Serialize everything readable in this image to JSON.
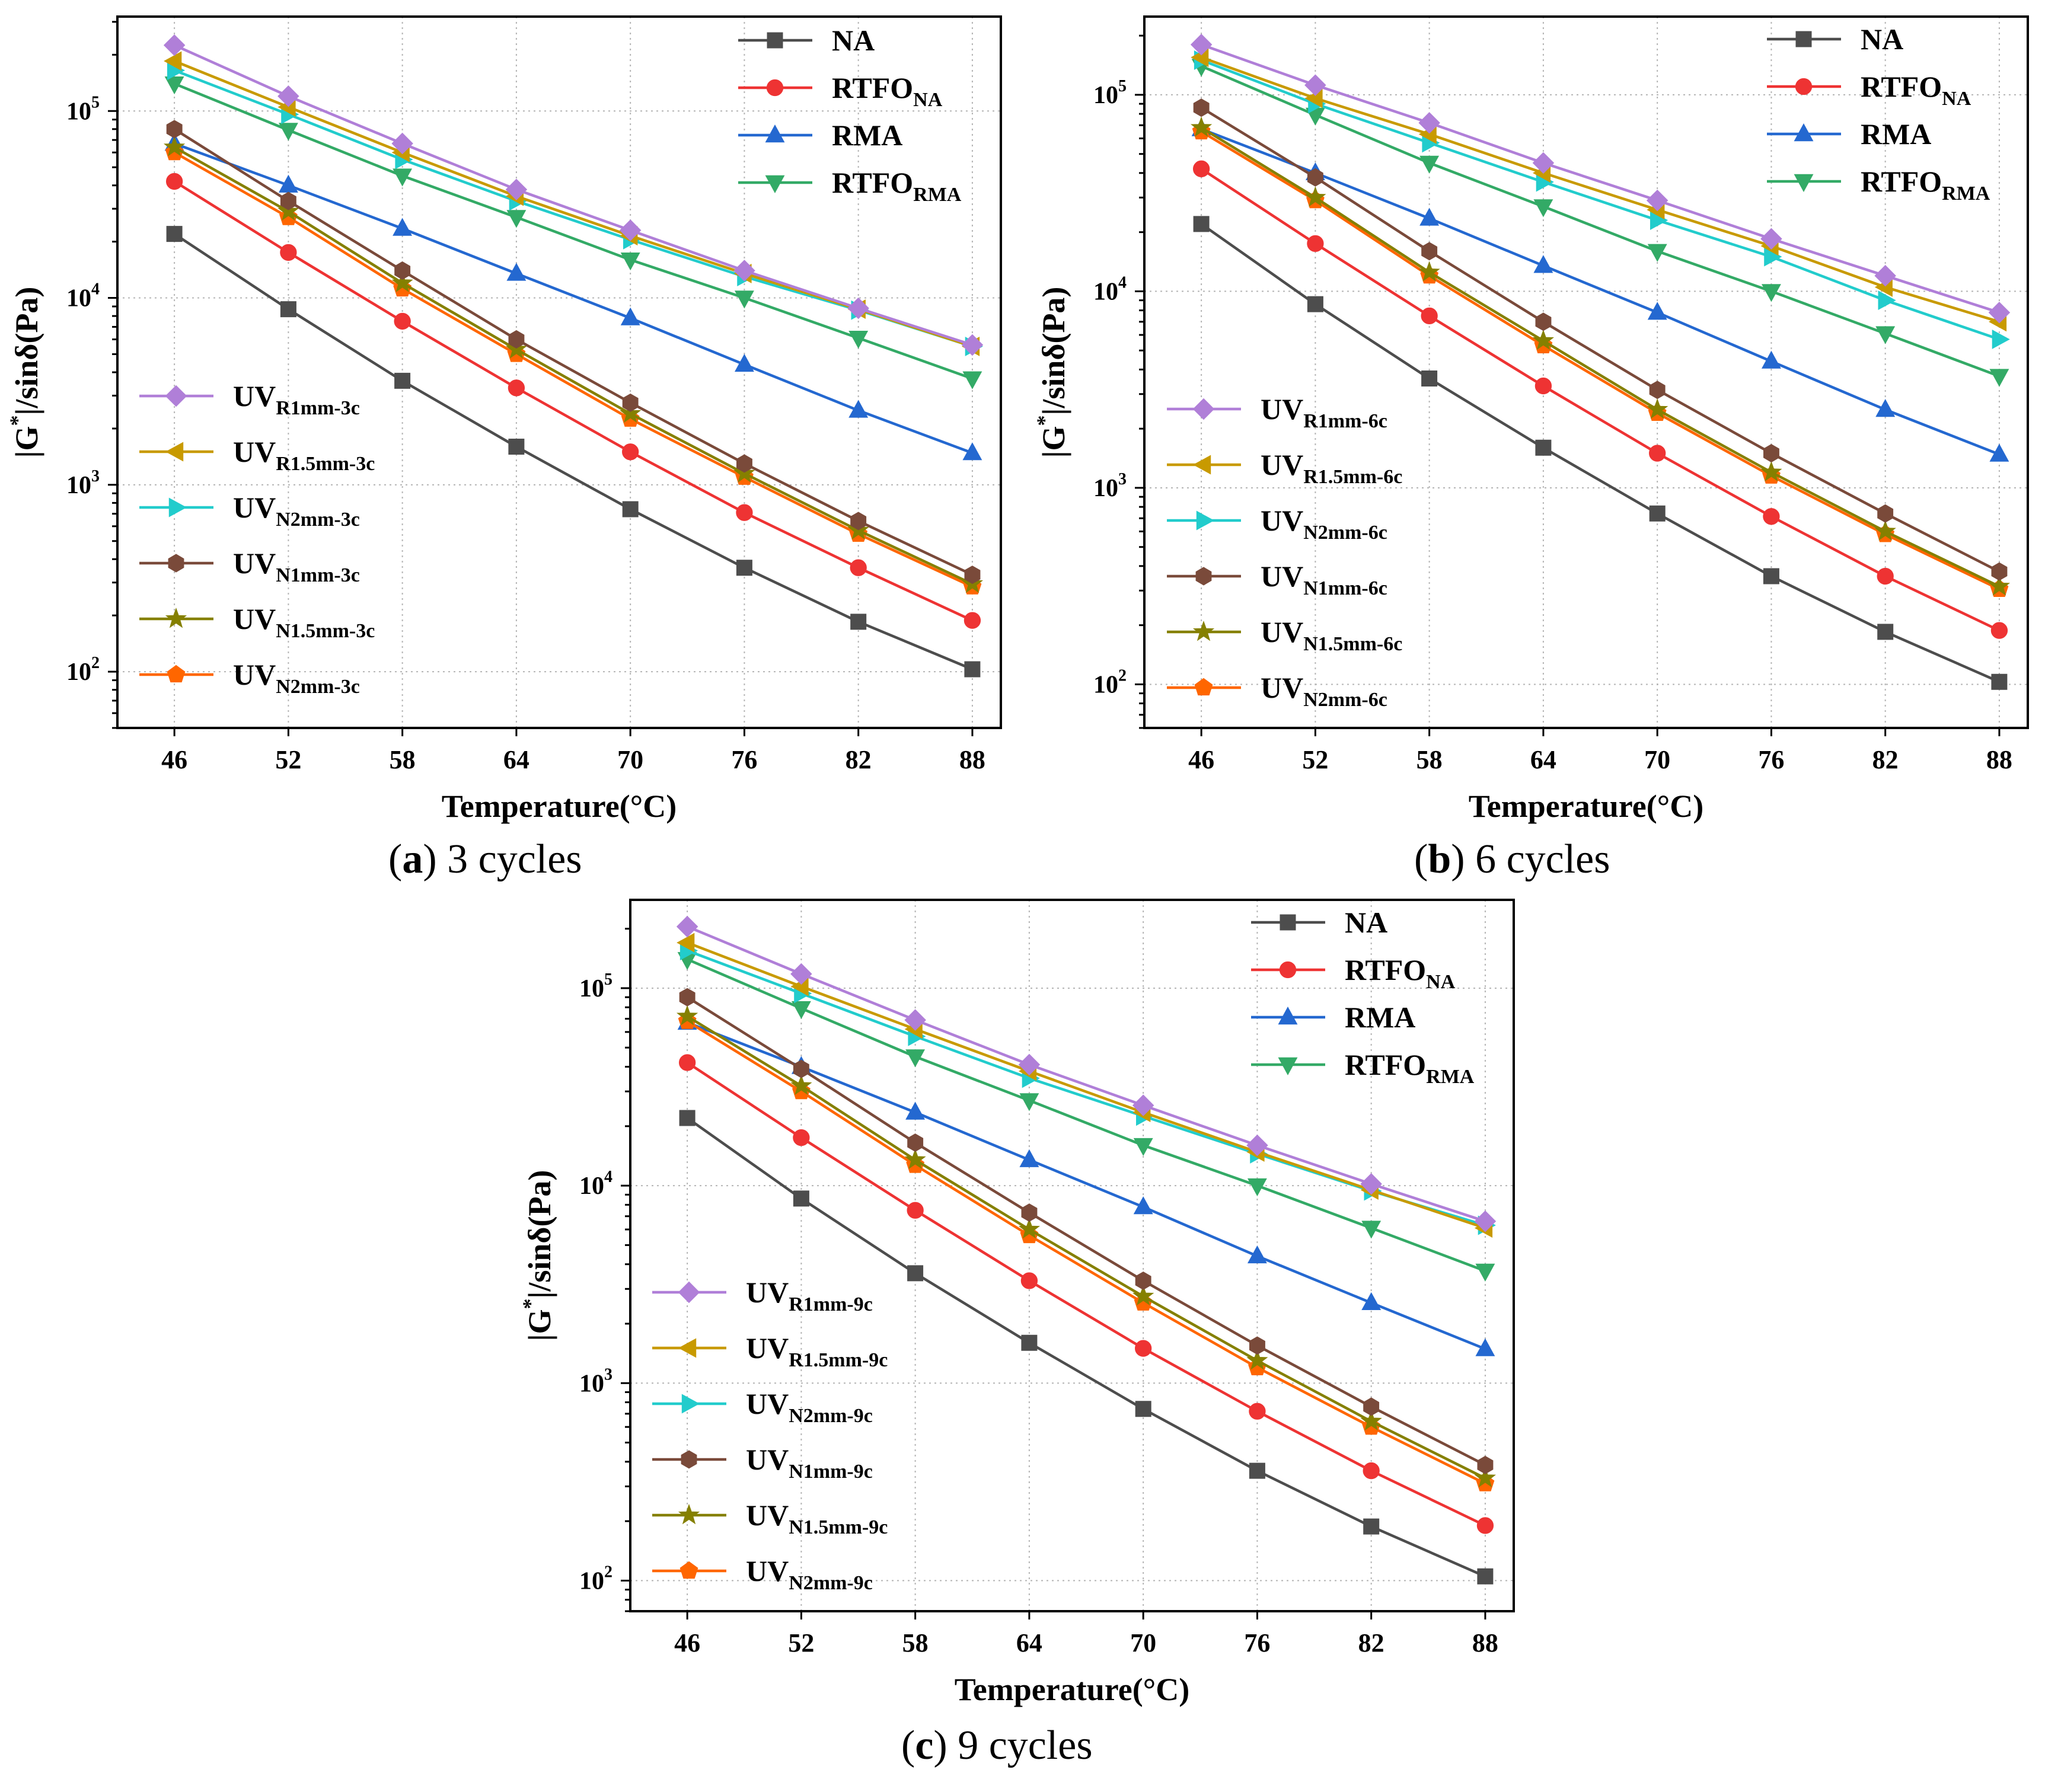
{
  "figure": {
    "captions": [
      {
        "letter": "a",
        "text": " 3 cycles"
      },
      {
        "letter": "b",
        "text": " 6 cycles"
      },
      {
        "letter": "c",
        "text": " 9 cycles"
      }
    ]
  },
  "series_styles": {
    "NA": {
      "color": "#4d4d4d",
      "marker": "square"
    },
    "RTFO_NA": {
      "color": "#ee3333",
      "marker": "circle"
    },
    "RMA": {
      "color": "#2468d0",
      "marker": "triangle-up"
    },
    "RTFO_RMA": {
      "color": "#33aa66",
      "marker": "triangle-down"
    },
    "UV_R1mm": {
      "color": "#b07fd8",
      "marker": "diamond"
    },
    "UV_R1.5mm": {
      "color": "#c89a00",
      "marker": "triangle-left"
    },
    "UV_N2mm_teal": {
      "color": "#22cccc",
      "marker": "triangle-right"
    },
    "UV_N1mm": {
      "color": "#7a4a3a",
      "marker": "hexagon"
    },
    "UV_N1.5mm": {
      "color": "#858000",
      "marker": "star"
    },
    "UV_N2mm_orange": {
      "color": "#ff6600",
      "marker": "pentagon"
    }
  },
  "chart_data": [
    {
      "type": "line",
      "panel": "a",
      "xlabel": "Temperature(°C)",
      "ylabel_parts": {
        "pre": "|G",
        "sup": "*",
        "post": "|/sinδ(Pa)"
      },
      "yscale": "log",
      "ylim": [
        50,
        320000
      ],
      "xlim": [
        43,
        89.5
      ],
      "x": [
        46,
        52,
        58,
        64,
        70,
        76,
        82,
        88
      ],
      "x_tick_labels": [
        "46",
        "52",
        "58",
        "64",
        "70",
        "76",
        "82",
        "88"
      ],
      "y_ticks": [
        {
          "base": "10",
          "exp": "2"
        },
        {
          "base": "10",
          "exp": "3"
        },
        {
          "base": "10",
          "exp": "4"
        },
        {
          "base": "10",
          "exp": "5"
        }
      ],
      "grid": true,
      "series": [
        {
          "style": "NA",
          "label": "NA",
          "sub": "",
          "values": [
            22000,
            8700,
            3600,
            1600,
            740,
            360,
            185,
            103
          ]
        },
        {
          "style": "RTFO_NA",
          "label": "RTFO",
          "sub": "NA",
          "values": [
            42000,
            17500,
            7500,
            3300,
            1500,
            710,
            360,
            188
          ]
        },
        {
          "style": "RMA",
          "label": "RMA",
          "sub": "",
          "values": [
            67000,
            40000,
            23500,
            13500,
            7800,
            4400,
            2500,
            1480
          ]
        },
        {
          "style": "RTFO_RMA",
          "label": "RTFO",
          "sub": "RMA",
          "values": [
            140000,
            79000,
            45000,
            27000,
            16000,
            10000,
            6100,
            3700
          ]
        },
        {
          "style": "UV_R1mm",
          "label": "UV",
          "sub": "R1mm-3c",
          "values": [
            225000,
            120000,
            67000,
            38000,
            23000,
            14000,
            8800,
            5600
          ]
        },
        {
          "style": "UV_R1.5mm",
          "label": "UV",
          "sub": "R1.5mm-3c",
          "values": [
            185000,
            105000,
            60000,
            35000,
            21500,
            13500,
            8700,
            5500
          ]
        },
        {
          "style": "UV_N2mm_teal",
          "label": "UV",
          "sub": "N2mm-3c",
          "values": [
            165000,
            96000,
            55000,
            33000,
            20500,
            13000,
            8600,
            5500
          ]
        },
        {
          "style": "UV_N1mm",
          "label": "UV",
          "sub": "N1mm-3c",
          "values": [
            80000,
            33000,
            14000,
            6000,
            2750,
            1300,
            640,
            330
          ]
        },
        {
          "style": "UV_N1.5mm",
          "label": "UV",
          "sub": "N1.5mm-3c",
          "values": [
            64000,
            29000,
            12000,
            5300,
            2400,
            1150,
            570,
            295
          ]
        },
        {
          "style": "UV_N2mm_orange",
          "label": "UV",
          "sub": "N2mm-3c",
          "values": [
            60000,
            27000,
            11200,
            5000,
            2250,
            1100,
            545,
            285
          ]
        }
      ]
    },
    {
      "type": "line",
      "panel": "b",
      "xlabel": "Temperature(°C)",
      "ylabel_parts": {
        "pre": "|G",
        "sup": "*",
        "post": "|/sinδ(Pa)"
      },
      "yscale": "log",
      "ylim": [
        60,
        250000
      ],
      "xlim": [
        43,
        89.5
      ],
      "x": [
        46,
        52,
        58,
        64,
        70,
        76,
        82,
        88
      ],
      "x_tick_labels": [
        "46",
        "52",
        "58",
        "64",
        "70",
        "76",
        "82",
        "88"
      ],
      "y_ticks": [
        {
          "base": "10",
          "exp": "2"
        },
        {
          "base": "10",
          "exp": "3"
        },
        {
          "base": "10",
          "exp": "4"
        },
        {
          "base": "10",
          "exp": "5"
        }
      ],
      "grid": true,
      "series": [
        {
          "style": "NA",
          "label": "NA",
          "sub": "",
          "values": [
            22000,
            8600,
            3600,
            1600,
            740,
            355,
            185,
            103
          ]
        },
        {
          "style": "RTFO_NA",
          "label": "RTFO",
          "sub": "NA",
          "values": [
            42000,
            17500,
            7500,
            3300,
            1500,
            715,
            355,
            188
          ]
        },
        {
          "style": "RMA",
          "label": "RMA",
          "sub": "",
          "values": [
            67000,
            40000,
            23500,
            13500,
            7800,
            4400,
            2500,
            1480
          ]
        },
        {
          "style": "RTFO_RMA",
          "label": "RTFO",
          "sub": "RMA",
          "values": [
            140000,
            79000,
            45000,
            27000,
            16000,
            10000,
            6100,
            3700
          ]
        },
        {
          "style": "UV_R1mm",
          "label": "UV",
          "sub": "R1mm-6c",
          "values": [
            180000,
            112000,
            72000,
            45000,
            29000,
            18500,
            12000,
            7800
          ]
        },
        {
          "style": "UV_R1.5mm",
          "label": "UV",
          "sub": "R1.5mm-6c",
          "values": [
            155000,
            96000,
            63000,
            40000,
            26000,
            17000,
            10500,
            7000
          ]
        },
        {
          "style": "UV_N2mm_teal",
          "label": "UV",
          "sub": "N2mm-6c",
          "values": [
            150000,
            90000,
            57000,
            36000,
            23000,
            15000,
            9000,
            5700
          ]
        },
        {
          "style": "UV_N1mm",
          "label": "UV",
          "sub": "N1mm-6c",
          "values": [
            86000,
            38000,
            16000,
            7000,
            3150,
            1500,
            740,
            375
          ]
        },
        {
          "style": "UV_N1.5mm",
          "label": "UV",
          "sub": "N1.5mm-6c",
          "values": [
            68000,
            30000,
            12500,
            5600,
            2500,
            1200,
            600,
            315
          ]
        },
        {
          "style": "UV_N2mm_orange",
          "label": "UV",
          "sub": "N2mm-6c",
          "values": [
            65000,
            29000,
            12000,
            5300,
            2400,
            1150,
            580,
            305
          ]
        }
      ]
    },
    {
      "type": "line",
      "panel": "c",
      "xlabel": "Temperature(°C)",
      "ylabel_parts": {
        "pre": "|G",
        "sup": "*",
        "post": "|/sinδ(Pa)"
      },
      "yscale": "log",
      "ylim": [
        70,
        280000
      ],
      "xlim": [
        43,
        89.5
      ],
      "x": [
        46,
        52,
        58,
        64,
        70,
        76,
        82,
        88
      ],
      "x_tick_labels": [
        "46",
        "52",
        "58",
        "64",
        "70",
        "76",
        "82",
        "88"
      ],
      "y_ticks": [
        {
          "base": "10",
          "exp": "2"
        },
        {
          "base": "10",
          "exp": "3"
        },
        {
          "base": "10",
          "exp": "4"
        },
        {
          "base": "10",
          "exp": "5"
        }
      ],
      "grid": true,
      "series": [
        {
          "style": "NA",
          "label": "NA",
          "sub": "",
          "values": [
            22000,
            8600,
            3600,
            1600,
            740,
            360,
            188,
            105
          ]
        },
        {
          "style": "RTFO_NA",
          "label": "RTFO",
          "sub": "NA",
          "values": [
            42000,
            17500,
            7500,
            3300,
            1500,
            720,
            360,
            190
          ]
        },
        {
          "style": "RMA",
          "label": "RMA",
          "sub": "",
          "values": [
            67000,
            40000,
            23500,
            13500,
            7800,
            4400,
            2550,
            1490
          ]
        },
        {
          "style": "RTFO_RMA",
          "label": "RTFO",
          "sub": "RMA",
          "values": [
            140000,
            79000,
            45000,
            27000,
            16000,
            10000,
            6100,
            3700
          ]
        },
        {
          "style": "UV_R1mm",
          "label": "UV",
          "sub": "R1mm-9c",
          "values": [
            205000,
            118000,
            69000,
            41000,
            25500,
            16000,
            10200,
            6600
          ]
        },
        {
          "style": "UV_R1.5mm",
          "label": "UV",
          "sub": "R1.5mm-9c",
          "values": [
            170000,
            102000,
            62000,
            38000,
            23500,
            14800,
            9500,
            6100
          ]
        },
        {
          "style": "UV_N2mm_teal",
          "label": "UV",
          "sub": "N2mm-9c",
          "values": [
            155000,
            94000,
            57000,
            35000,
            22500,
            14500,
            9400,
            6300
          ]
        },
        {
          "style": "UV_N1mm",
          "label": "UV",
          "sub": "N1mm-9c",
          "values": [
            90000,
            39000,
            16500,
            7300,
            3300,
            1550,
            760,
            385
          ]
        },
        {
          "style": "UV_N1.5mm",
          "label": "UV",
          "sub": "N1.5mm-9c",
          "values": [
            72000,
            32000,
            13500,
            6000,
            2750,
            1300,
            640,
            330
          ]
        },
        {
          "style": "UV_N2mm_orange",
          "label": "UV",
          "sub": "N2mm-9c",
          "values": [
            68000,
            30000,
            12700,
            5600,
            2550,
            1200,
            600,
            310
          ]
        }
      ]
    }
  ]
}
